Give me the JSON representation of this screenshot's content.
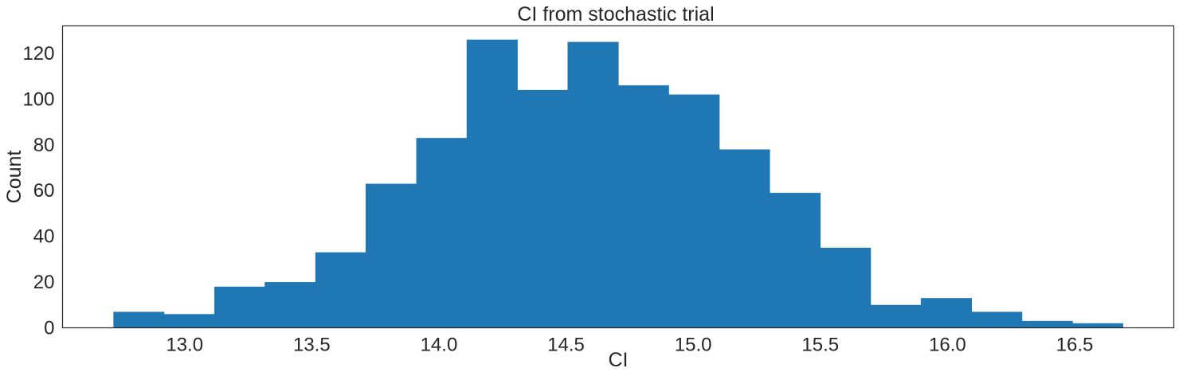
{
  "chart_data": {
    "type": "bar",
    "title": "CI from stochastic trial",
    "xlabel": "CI",
    "ylabel": "Count",
    "bin_edges": [
      12.72,
      12.918,
      13.117,
      13.315,
      13.514,
      13.712,
      13.911,
      14.109,
      14.308,
      14.506,
      14.705,
      14.903,
      15.102,
      15.3,
      15.499,
      15.697,
      15.895,
      16.094,
      16.292,
      16.491,
      16.689
    ],
    "values": [
      7,
      6,
      18,
      20,
      33,
      63,
      83,
      126,
      104,
      125,
      106,
      102,
      78,
      59,
      35,
      10,
      13,
      7,
      3,
      2
    ],
    "xlim": [
      12.52,
      16.89
    ],
    "ylim": [
      0,
      132
    ],
    "xticks": [
      13.0,
      13.5,
      14.0,
      14.5,
      15.0,
      15.5,
      16.0,
      16.5
    ],
    "xtick_labels": [
      "13.0",
      "13.5",
      "14.0",
      "14.5",
      "15.0",
      "15.5",
      "16.0",
      "16.5"
    ],
    "yticks": [
      0,
      20,
      40,
      60,
      80,
      100,
      120
    ],
    "ytick_labels": [
      "0",
      "20",
      "40",
      "60",
      "80",
      "100",
      "120"
    ],
    "grid": false,
    "bar_color": "#1f77b4"
  }
}
